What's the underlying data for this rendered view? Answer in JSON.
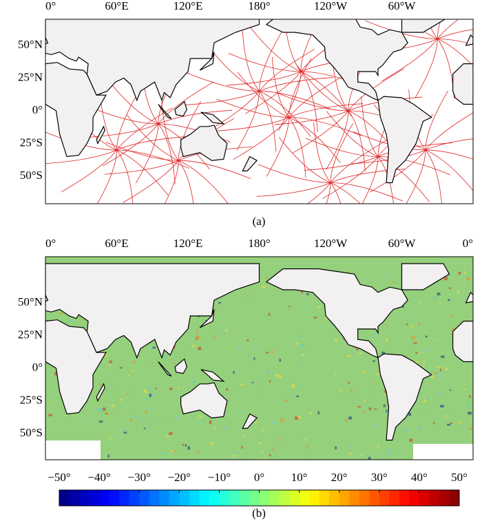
{
  "panels": [
    {
      "x_ticks": [
        "0°",
        "60°E",
        "120°E",
        "180°",
        "120°W",
        "60°W"
      ],
      "y_ticks": [
        "50°N",
        "25°N",
        "0°",
        "25°S",
        "50°S"
      ],
      "caption": "(a)"
    },
    {
      "x_ticks": [
        "0°",
        "60°E",
        "120°E",
        "180°",
        "120°W",
        "60°W",
        "0°"
      ],
      "y_ticks": [
        "50°N",
        "25°N",
        "0°",
        "25°S",
        "50°S"
      ],
      "caption": "(b)"
    }
  ],
  "colorbar": {
    "range": [
      -50,
      50
    ],
    "ticks": [
      {
        "value": -50,
        "label": "−50°"
      },
      {
        "value": -40,
        "label": "−40°"
      },
      {
        "value": -30,
        "label": "−30°"
      },
      {
        "value": -20,
        "label": "−20°"
      },
      {
        "value": -10,
        "label": "−10°"
      },
      {
        "value": 0,
        "label": "0°"
      },
      {
        "value": 10,
        "label": "10°"
      },
      {
        "value": 20,
        "label": "20°"
      },
      {
        "value": 30,
        "label": "30°"
      },
      {
        "value": 40,
        "label": "40°"
      },
      {
        "value": 50,
        "label": "50°"
      }
    ]
  }
}
